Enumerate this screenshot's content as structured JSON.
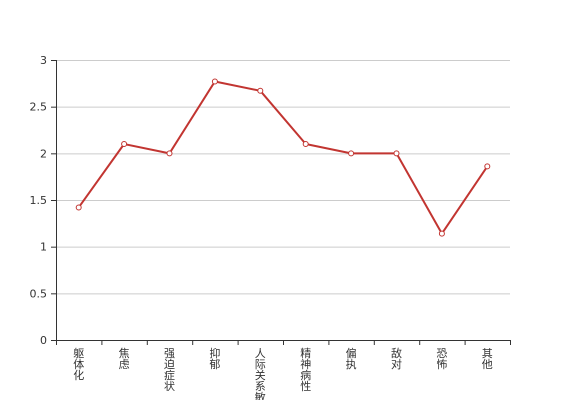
{
  "chart_data": {
    "type": "line",
    "categories": [
      "躯体化",
      "焦虑",
      "强迫症状",
      "抑郁",
      "人际关系敏感",
      "精神病性",
      "偏执",
      "敌对",
      "恐怖",
      "其他"
    ],
    "series": [
      {
        "values": [
          1.42,
          2.1,
          2.0,
          2.77,
          2.67,
          2.1,
          2.0,
          2.0,
          1.14,
          1.86
        ],
        "color": "#c23531"
      }
    ],
    "ylim": [
      0,
      3
    ],
    "yticks": [
      0,
      0.5,
      1,
      1.5,
      2,
      2.5,
      3
    ],
    "ytick_labels": [
      "0",
      "0.5",
      "1",
      "1.5",
      "2",
      "2.5",
      "3"
    ],
    "grid": true,
    "marker": "hollow-circle",
    "title": "",
    "xlabel": "",
    "ylabel": ""
  }
}
